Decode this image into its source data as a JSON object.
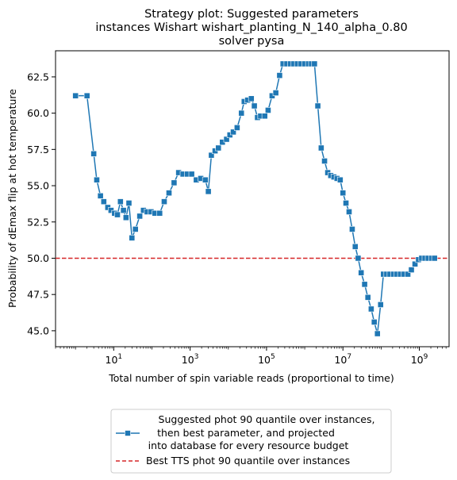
{
  "chart_data": {
    "type": "line",
    "title_lines": [
      "Strategy plot: Suggested parameters",
      "instances Wishart wishart_planting_N_140_alpha_0.80",
      "solver pysa"
    ],
    "xlabel": "Total number of spin variable reads (proportional to time)",
    "ylabel": "Probability of dEmax flip at hot temperature",
    "x_scale": "log",
    "xlim": [
      0.3,
      6000000000
    ],
    "ylim": [
      43.9,
      64.3
    ],
    "x_ticks": [
      {
        "value": 10,
        "base": "10",
        "exp": "1"
      },
      {
        "value": 1000,
        "base": "10",
        "exp": "3"
      },
      {
        "value": 100000,
        "base": "10",
        "exp": "5"
      },
      {
        "value": 10000000,
        "base": "10",
        "exp": "7"
      },
      {
        "value": 1000000000,
        "base": "10",
        "exp": "9"
      }
    ],
    "y_ticks": [
      {
        "value": 45.0,
        "label": "45.0"
      },
      {
        "value": 47.5,
        "label": "47.5"
      },
      {
        "value": 50.0,
        "label": "50.0"
      },
      {
        "value": 52.5,
        "label": "52.5"
      },
      {
        "value": 55.0,
        "label": "55.0"
      },
      {
        "value": 57.5,
        "label": "57.5"
      },
      {
        "value": 60.0,
        "label": "60.0"
      },
      {
        "value": 62.5,
        "label": "62.5"
      }
    ],
    "grid": false,
    "legend_position": "below-center",
    "series": [
      {
        "name_lines": [
          "Suggested phot 90 quantile over instances,",
          "then best parameter, and projected",
          "into database for every resource budget"
        ],
        "color": "#1f77b4",
        "marker": "square",
        "points": [
          [
            1,
            61.2
          ],
          [
            2,
            61.2
          ],
          [
            3,
            57.2
          ],
          [
            3.6,
            55.4
          ],
          [
            4.5,
            54.3
          ],
          [
            5.5,
            53.9
          ],
          [
            7,
            53.5
          ],
          [
            8.5,
            53.3
          ],
          [
            10.5,
            53.1
          ],
          [
            12.5,
            53.0
          ],
          [
            15,
            53.9
          ],
          [
            18,
            53.3
          ],
          [
            21,
            52.8
          ],
          [
            25,
            53.8
          ],
          [
            30,
            51.4
          ],
          [
            37,
            52.0
          ],
          [
            48,
            52.9
          ],
          [
            60,
            53.3
          ],
          [
            75,
            53.2
          ],
          [
            95,
            53.2
          ],
          [
            120,
            53.1
          ],
          [
            160,
            53.1
          ],
          [
            210,
            53.9
          ],
          [
            280,
            54.5
          ],
          [
            380,
            55.2
          ],
          [
            500,
            55.9
          ],
          [
            650,
            55.8
          ],
          [
            850,
            55.8
          ],
          [
            1100,
            55.8
          ],
          [
            1450,
            55.4
          ],
          [
            1900,
            55.5
          ],
          [
            2500,
            55.4
          ],
          [
            3000,
            54.6
          ],
          [
            3600,
            57.1
          ],
          [
            4500,
            57.4
          ],
          [
            5500,
            57.6
          ],
          [
            7000,
            58.0
          ],
          [
            9000,
            58.2
          ],
          [
            11000,
            58.5
          ],
          [
            13500,
            58.7
          ],
          [
            17000,
            59.0
          ],
          [
            22000,
            60.0
          ],
          [
            26000,
            60.8
          ],
          [
            32000,
            60.9
          ],
          [
            40000,
            61.0
          ],
          [
            48000,
            60.5
          ],
          [
            58000,
            59.7
          ],
          [
            70000,
            59.8
          ],
          [
            90000,
            59.8
          ],
          [
            110000,
            60.2
          ],
          [
            140000,
            61.2
          ],
          [
            175000,
            61.4
          ],
          [
            220000,
            62.6
          ],
          [
            270000,
            63.4
          ],
          [
            340000,
            63.4
          ],
          [
            420000,
            63.4
          ],
          [
            520000,
            63.4
          ],
          [
            640000,
            63.4
          ],
          [
            800000,
            63.4
          ],
          [
            1000000,
            63.4
          ],
          [
            1250000,
            63.4
          ],
          [
            1500000,
            63.4
          ],
          [
            1800000,
            63.4
          ],
          [
            2200000,
            60.5
          ],
          [
            2700000,
            57.6
          ],
          [
            3300000,
            56.7
          ],
          [
            4000000,
            55.9
          ],
          [
            4800000,
            55.7
          ],
          [
            5800000,
            55.6
          ],
          [
            7000000,
            55.5
          ],
          [
            8500000,
            55.4
          ],
          [
            10000000,
            54.5
          ],
          [
            12000000,
            53.8
          ],
          [
            14500000,
            53.2
          ],
          [
            17500000,
            52.0
          ],
          [
            21000000,
            50.8
          ],
          [
            25000000,
            50.0
          ],
          [
            30000000,
            49.0
          ],
          [
            37000000,
            48.2
          ],
          [
            45000000,
            47.3
          ],
          [
            55000000,
            46.5
          ],
          [
            66000000,
            45.6
          ],
          [
            80000000,
            44.8
          ],
          [
            97000000,
            46.8
          ],
          [
            115000000,
            48.9
          ],
          [
            140000000,
            48.9
          ],
          [
            170000000,
            48.9
          ],
          [
            210000000,
            48.9
          ],
          [
            260000000,
            48.9
          ],
          [
            320000000,
            48.9
          ],
          [
            400000000,
            48.9
          ],
          [
            500000000,
            48.9
          ],
          [
            620000000,
            49.2
          ],
          [
            770000000,
            49.6
          ],
          [
            950000000,
            49.9
          ],
          [
            1150000000,
            50.0
          ],
          [
            1400000000,
            50.0
          ],
          [
            1700000000,
            50.0
          ],
          [
            2100000000,
            50.0
          ],
          [
            2500000000,
            50.0
          ]
        ]
      }
    ],
    "reference_line": {
      "name": "Best TTS phot 90 quantile over instances",
      "y": 50.0,
      "color": "#d62728",
      "style": "dashed"
    }
  }
}
